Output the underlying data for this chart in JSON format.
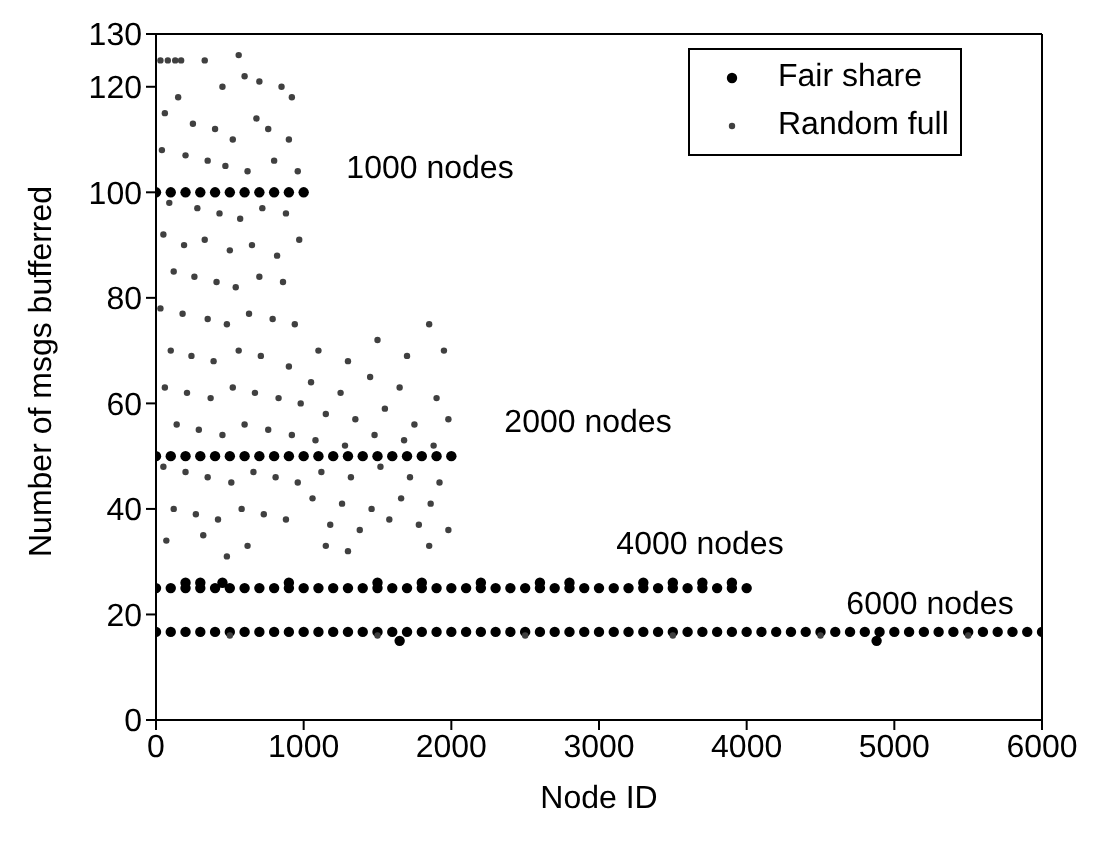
{
  "chart_data": {
    "type": "scatter",
    "xlabel": "Node ID",
    "ylabel": "Number of msgs bufferred",
    "xlim": [
      0,
      6000
    ],
    "xticks": [
      0,
      1000,
      2000,
      3000,
      4000,
      5000,
      6000
    ],
    "ylim": [
      0,
      130
    ],
    "yticks": [
      0,
      20,
      40,
      60,
      80,
      100,
      120,
      130
    ],
    "grid": false,
    "legend": "top right",
    "marker": "circle",
    "annotations": [
      "1000 nodes",
      "2000 nodes",
      "4000 nodes",
      "6000 nodes"
    ],
    "series": [
      {
        "name": "Fair share",
        "color": "#000000",
        "x": [
          0,
          100,
          200,
          300,
          400,
          500,
          600,
          700,
          800,
          900,
          1000,
          0,
          100,
          200,
          300,
          400,
          500,
          600,
          700,
          800,
          900,
          1000,
          1100,
          1200,
          1300,
          1400,
          1500,
          1600,
          1700,
          1800,
          1900,
          2000,
          0,
          100,
          200,
          300,
          400,
          500,
          600,
          700,
          800,
          900,
          1000,
          1100,
          1200,
          1300,
          1400,
          1500,
          1600,
          1700,
          1800,
          1900,
          2000,
          2100,
          2200,
          2300,
          2400,
          2500,
          2600,
          2700,
          2800,
          2900,
          3000,
          3100,
          3200,
          3300,
          3400,
          3500,
          3600,
          3700,
          3800,
          3900,
          4000,
          0,
          100,
          200,
          300,
          400,
          500,
          600,
          700,
          800,
          900,
          1000,
          1100,
          1200,
          1300,
          1400,
          1500,
          1600,
          1700,
          1800,
          1900,
          2000,
          2100,
          2200,
          2300,
          2400,
          2500,
          2600,
          2700,
          2800,
          2900,
          3000,
          3100,
          3200,
          3300,
          3400,
          3500,
          3600,
          3700,
          3800,
          3900,
          4000,
          4100,
          4200,
          4300,
          4400,
          4500,
          4600,
          4700,
          4800,
          4900,
          5000,
          5100,
          5200,
          5300,
          5400,
          5500,
          5600,
          5700,
          5800,
          5900,
          6000,
          200,
          300,
          450,
          900,
          1500,
          1800,
          2200,
          2600,
          2800,
          3300,
          3500,
          3700,
          3900,
          1650,
          4880
        ],
        "values": [
          100,
          100,
          100,
          100,
          100,
          100,
          100,
          100,
          100,
          100,
          100,
          50,
          50,
          50,
          50,
          50,
          50,
          50,
          50,
          50,
          50,
          50,
          50,
          50,
          50,
          50,
          50,
          50,
          50,
          50,
          50,
          50,
          25,
          25,
          25,
          25,
          25,
          25,
          25,
          25,
          25,
          25,
          25,
          25,
          25,
          25,
          25,
          25,
          25,
          25,
          25,
          25,
          25,
          25,
          25,
          25,
          25,
          25,
          25,
          25,
          25,
          25,
          25,
          25,
          25,
          25,
          25,
          25,
          25,
          25,
          25,
          25,
          25,
          16.7,
          16.7,
          16.7,
          16.7,
          16.7,
          16.7,
          16.7,
          16.7,
          16.7,
          16.7,
          16.7,
          16.7,
          16.7,
          16.7,
          16.7,
          16.7,
          16.7,
          16.7,
          16.7,
          16.7,
          16.7,
          16.7,
          16.7,
          16.7,
          16.7,
          16.7,
          16.7,
          16.7,
          16.7,
          16.7,
          16.7,
          16.7,
          16.7,
          16.7,
          16.7,
          16.7,
          16.7,
          16.7,
          16.7,
          16.7,
          16.7,
          16.7,
          16.7,
          16.7,
          16.7,
          16.7,
          16.7,
          16.7,
          16.7,
          16.7,
          16.7,
          16.7,
          16.7,
          16.7,
          16.7,
          16.7,
          16.7,
          16.7,
          16.7,
          16.7,
          16.7,
          26,
          26,
          26,
          26,
          26,
          26,
          26,
          26,
          26,
          26,
          26,
          26,
          26,
          15,
          15
        ]
      },
      {
        "name": "Random full",
        "color": "#404040",
        "x": [
          30,
          80,
          130,
          170,
          330,
          560,
          450,
          150,
          600,
          700,
          850,
          920,
          60,
          250,
          400,
          520,
          680,
          760,
          900,
          40,
          200,
          350,
          470,
          620,
          800,
          960,
          90,
          280,
          430,
          570,
          720,
          880,
          50,
          190,
          330,
          500,
          650,
          820,
          970,
          120,
          260,
          410,
          540,
          700,
          860,
          30,
          180,
          350,
          480,
          630,
          790,
          940,
          100,
          240,
          390,
          560,
          710,
          900,
          60,
          210,
          370,
          520,
          670,
          830,
          980,
          140,
          290,
          450,
          600,
          760,
          920,
          50,
          200,
          350,
          510,
          660,
          810,
          960,
          120,
          270,
          420,
          580,
          730,
          880,
          70,
          320,
          480,
          620,
          1850,
          1100,
          1300,
          1500,
          1700,
          1950,
          1050,
          1250,
          1450,
          1650,
          1900,
          1150,
          1350,
          1550,
          1750,
          1980,
          1080,
          1280,
          1480,
          1680,
          1880,
          1120,
          1320,
          1520,
          1720,
          1920,
          1060,
          1260,
          1460,
          1660,
          1860,
          1180,
          1380,
          1580,
          1780,
          1980,
          1150,
          1300,
          1850,
          500,
          1500,
          2500,
          3500,
          4500,
          5500
        ],
        "values": [
          125,
          125,
          125,
          125,
          125,
          126,
          120,
          118,
          122,
          121,
          120,
          118,
          115,
          113,
          112,
          110,
          114,
          112,
          110,
          108,
          107,
          106,
          105,
          104,
          106,
          104,
          98,
          97,
          96,
          95,
          97,
          96,
          92,
          90,
          91,
          89,
          90,
          88,
          91,
          85,
          84,
          83,
          82,
          84,
          83,
          78,
          77,
          76,
          75,
          77,
          76,
          75,
          70,
          69,
          68,
          70,
          69,
          67,
          63,
          62,
          61,
          63,
          62,
          61,
          60,
          56,
          55,
          54,
          56,
          55,
          54,
          48,
          47,
          46,
          45,
          47,
          46,
          45,
          40,
          39,
          38,
          40,
          39,
          38,
          34,
          35,
          31,
          33,
          75,
          70,
          68,
          72,
          69,
          70,
          64,
          62,
          65,
          63,
          61,
          58,
          57,
          59,
          56,
          57,
          53,
          52,
          54,
          53,
          52,
          47,
          46,
          48,
          46,
          45,
          42,
          41,
          40,
          42,
          41,
          37,
          36,
          38,
          37,
          36,
          33,
          32,
          33,
          16,
          16,
          16,
          16,
          16,
          16
        ]
      }
    ]
  }
}
